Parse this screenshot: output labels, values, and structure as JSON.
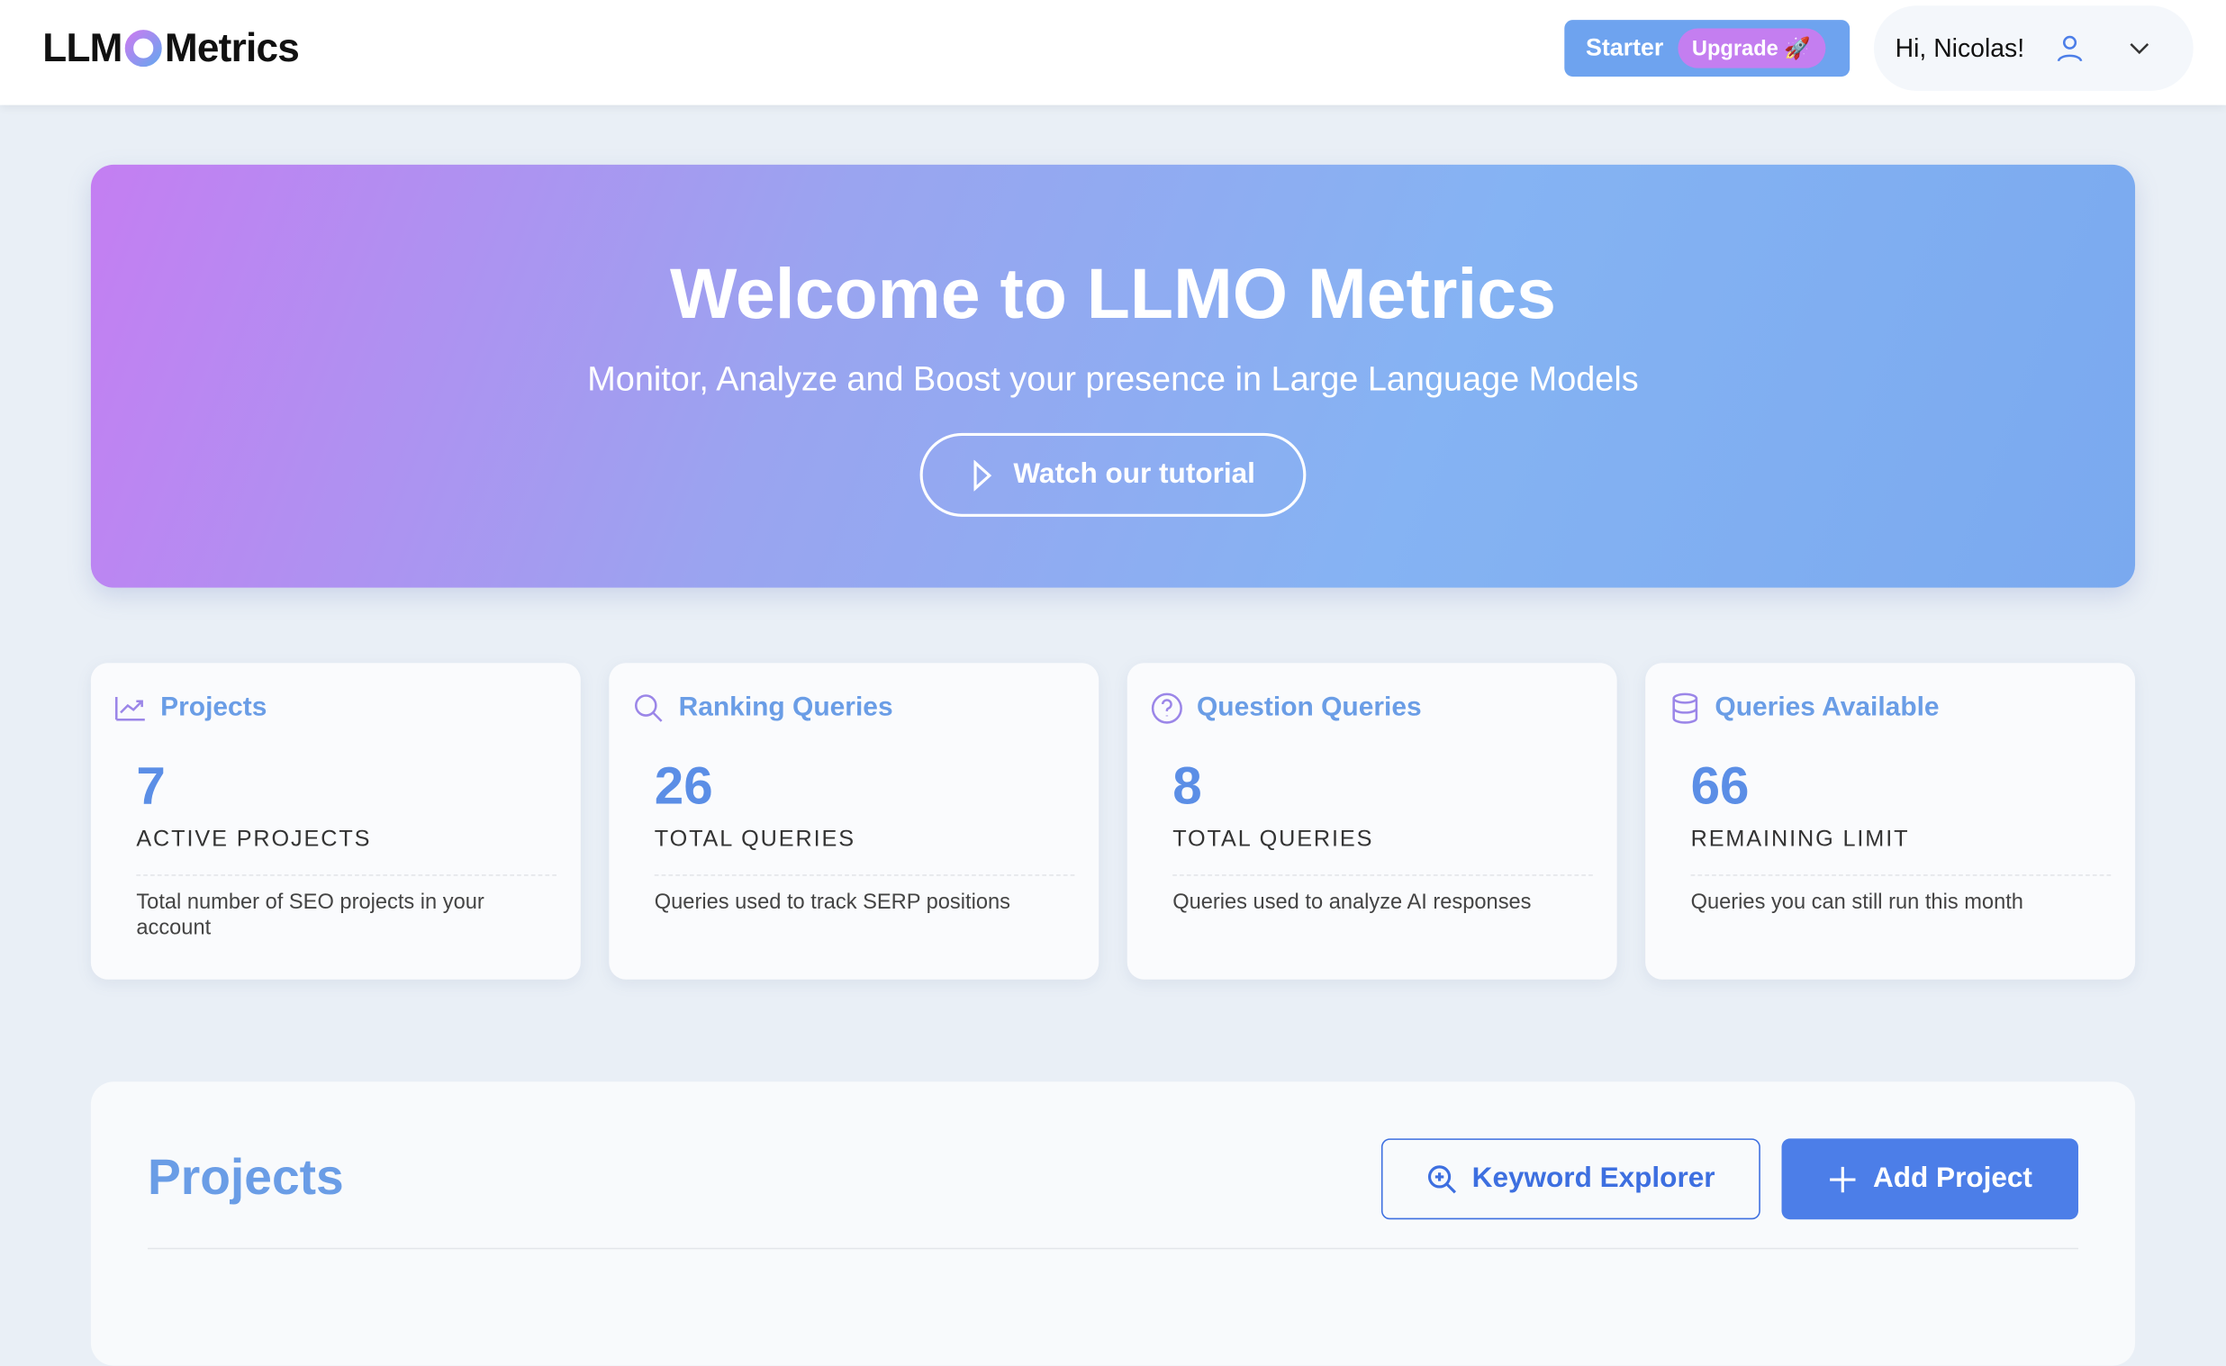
{
  "header": {
    "logo": {
      "left": "LLM",
      "right": "Metrics"
    },
    "plan": "Starter",
    "upgrade": "Upgrade 🚀",
    "greeting": "Hi, Nicolas!"
  },
  "hero": {
    "title": "Welcome to LLMO Metrics",
    "subtitle": "Monitor, Analyze and Boost your presence in Large Language Models",
    "button": "Watch our tutorial"
  },
  "cards": [
    {
      "title": "Projects",
      "value": "7",
      "label": "ACTIVE PROJECTS",
      "description": "Total number of SEO projects in your account"
    },
    {
      "title": "Ranking Queries",
      "value": "26",
      "label": "TOTAL QUERIES",
      "description": "Queries used to track SERP positions"
    },
    {
      "title": "Question Queries",
      "value": "8",
      "label": "TOTAL QUERIES",
      "description": "Queries used to analyze AI responses"
    },
    {
      "title": "Queries Available",
      "value": "66",
      "label": "REMAINING LIMIT",
      "description": "Queries you can still run this month"
    }
  ],
  "projects": {
    "title": "Projects",
    "keyword_button": "Keyword Explorer",
    "add_button": "Add Project"
  }
}
